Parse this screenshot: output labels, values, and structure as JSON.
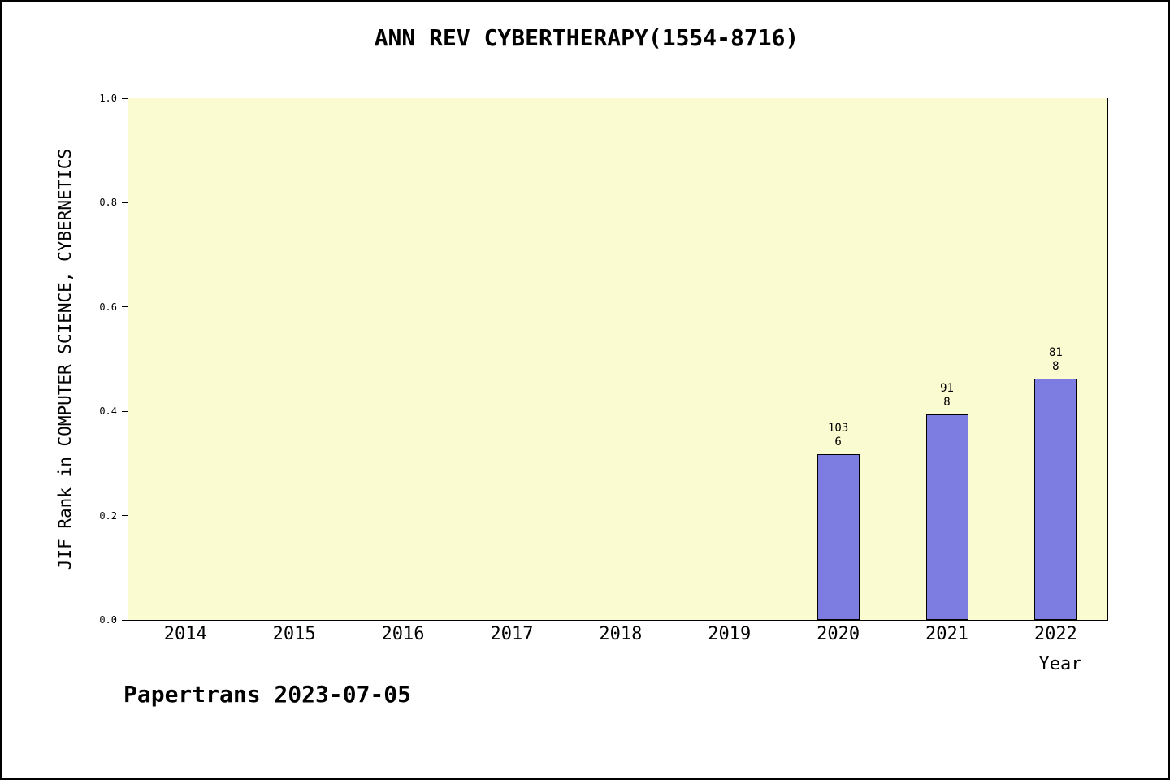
{
  "header": {
    "title": "ANN REV CYBERTHERAPY(1554-8716)"
  },
  "footer": {
    "text": "Papertrans 2023-07-05"
  },
  "chart_data": {
    "type": "bar",
    "title": "ANN REV CYBERTHERAPY(1554-8716)",
    "xlabel": "Year",
    "ylabel": "JIF Rank in COMPUTER SCIENCE, CYBERNETICS",
    "categories": [
      "2014",
      "2015",
      "2016",
      "2017",
      "2018",
      "2019",
      "2020",
      "2021",
      "2022"
    ],
    "values": [
      null,
      null,
      null,
      null,
      null,
      null,
      0.318,
      0.394,
      0.463
    ],
    "bar_labels": [
      null,
      null,
      null,
      null,
      null,
      null,
      "103\n6",
      "91\n8",
      "81\n8"
    ],
    "ylim": [
      0,
      1
    ],
    "yticks": [
      "0.0",
      "0.2",
      "0.4",
      "0.6",
      "0.8",
      "1.0"
    ],
    "grid": false,
    "legend": null,
    "colors": {
      "bar_fill": "#7d7de1",
      "bar_edge": "#000000",
      "plot_background": "#fbfbd2",
      "page_background": "#ffffff",
      "text": "#000000"
    }
  }
}
